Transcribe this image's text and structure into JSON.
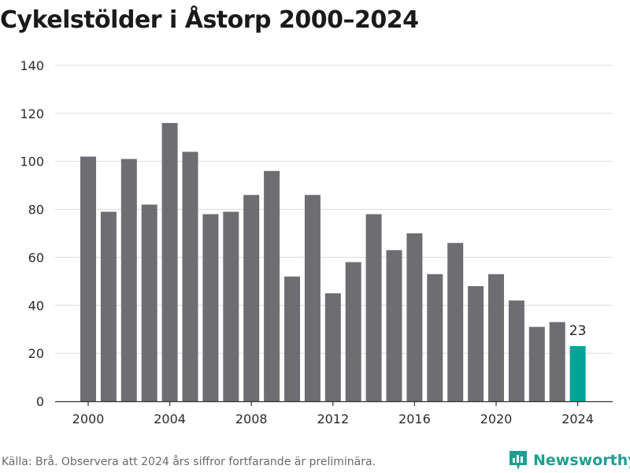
{
  "title": "Cykelstölder i Åstorp 2000–2024",
  "source": "Källa: Brå. Observera att 2024 års siffror fortfarande är preliminära.",
  "brand": {
    "name": "Newsworthy",
    "icon": "newsworthy-logo-icon",
    "color": "#1f9e93"
  },
  "colors": {
    "bar": "#6e6d72",
    "highlight": "#00a597",
    "grid": "#dcdcdc"
  },
  "chart_data": {
    "type": "bar",
    "title": "Cykelstölder i Åstorp 2000–2024",
    "xlabel": "",
    "ylabel": "",
    "categories": [
      2000,
      2001,
      2002,
      2003,
      2004,
      2005,
      2006,
      2007,
      2008,
      2009,
      2010,
      2011,
      2012,
      2013,
      2014,
      2015,
      2016,
      2017,
      2018,
      2019,
      2020,
      2021,
      2022,
      2023,
      2024
    ],
    "values": [
      102,
      79,
      101,
      82,
      116,
      104,
      78,
      79,
      86,
      96,
      52,
      86,
      45,
      58,
      78,
      63,
      70,
      53,
      66,
      48,
      53,
      42,
      31,
      33,
      23
    ],
    "highlight": [
      2024
    ],
    "data_labels": [
      {
        "category": 2024,
        "text": "23"
      }
    ],
    "ylim": [
      0,
      140
    ],
    "yticks": [
      0,
      20,
      40,
      60,
      80,
      100,
      120,
      140
    ],
    "xticks": [
      2000,
      2004,
      2008,
      2012,
      2016,
      2020,
      2024
    ],
    "grid": true,
    "legend": "none"
  }
}
